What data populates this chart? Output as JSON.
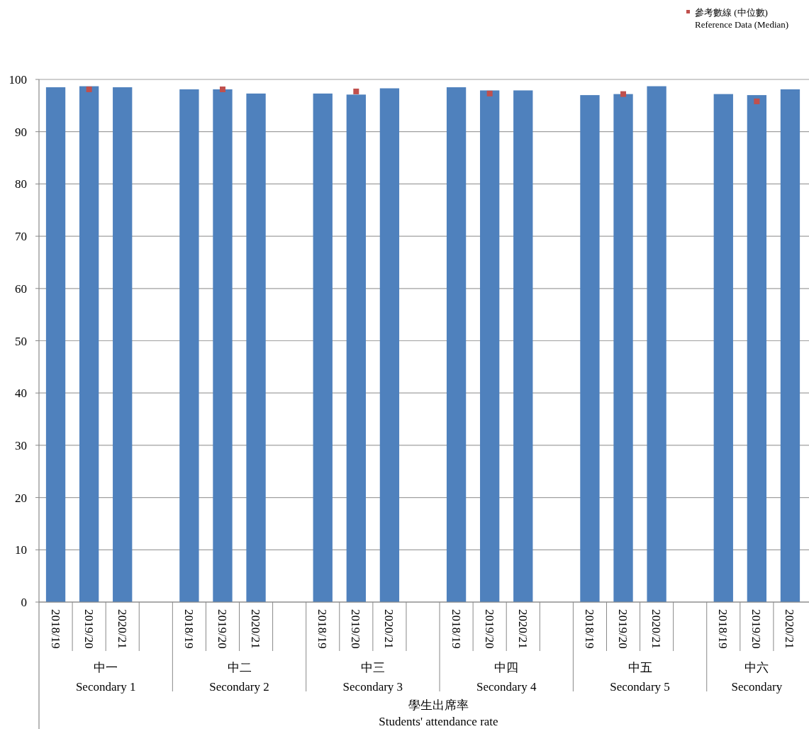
{
  "chart_data": {
    "type": "bar",
    "categories": [
      "2018/19",
      "2019/20",
      "2020/21",
      null,
      "2018/19",
      "2019/20",
      "2020/21",
      null,
      "2018/19",
      "2019/20",
      "2020/21",
      null,
      "2018/19",
      "2019/20",
      "2020/21",
      null,
      "2018/19",
      "2019/20",
      "2020/21",
      null,
      "2018/19",
      "2019/20",
      "2020/21"
    ],
    "series": [
      {
        "color": "#4f81bd",
        "values": [
          98.5,
          98.7,
          98.5,
          null,
          98.1,
          98.1,
          97.3,
          null,
          97.3,
          97.1,
          98.3,
          null,
          98.5,
          97.9,
          97.9,
          null,
          97.0,
          97.2,
          98.7,
          null,
          97.2,
          97.0,
          98.1
        ]
      },
      {
        "type": "scatter",
        "name": "參考數線 (中位數)\nReference Data (Median)",
        "color": "#c0504d",
        "values": [
          null,
          98.1,
          null,
          null,
          null,
          98.1,
          null,
          null,
          null,
          97.7,
          null,
          null,
          null,
          97.3,
          null,
          null,
          null,
          97.2,
          null,
          null,
          null,
          95.8,
          null
        ]
      }
    ],
    "marker": "square",
    "ylim": [
      0,
      100
    ],
    "yticks": [
      0,
      10,
      20,
      30,
      40,
      50,
      60,
      70,
      80,
      90,
      100
    ],
    "grid": "y",
    "legend": "top right",
    "xlabel": "學生出席率\nStudents' attendance rate",
    "annotations": [
      "中一\nSecondary 1",
      "中二\nSecondary 2",
      "中三\nSecondary 3",
      "中四\nSecondary 4",
      "中五\nSecondary 5",
      "中六\nSecondary"
    ]
  }
}
